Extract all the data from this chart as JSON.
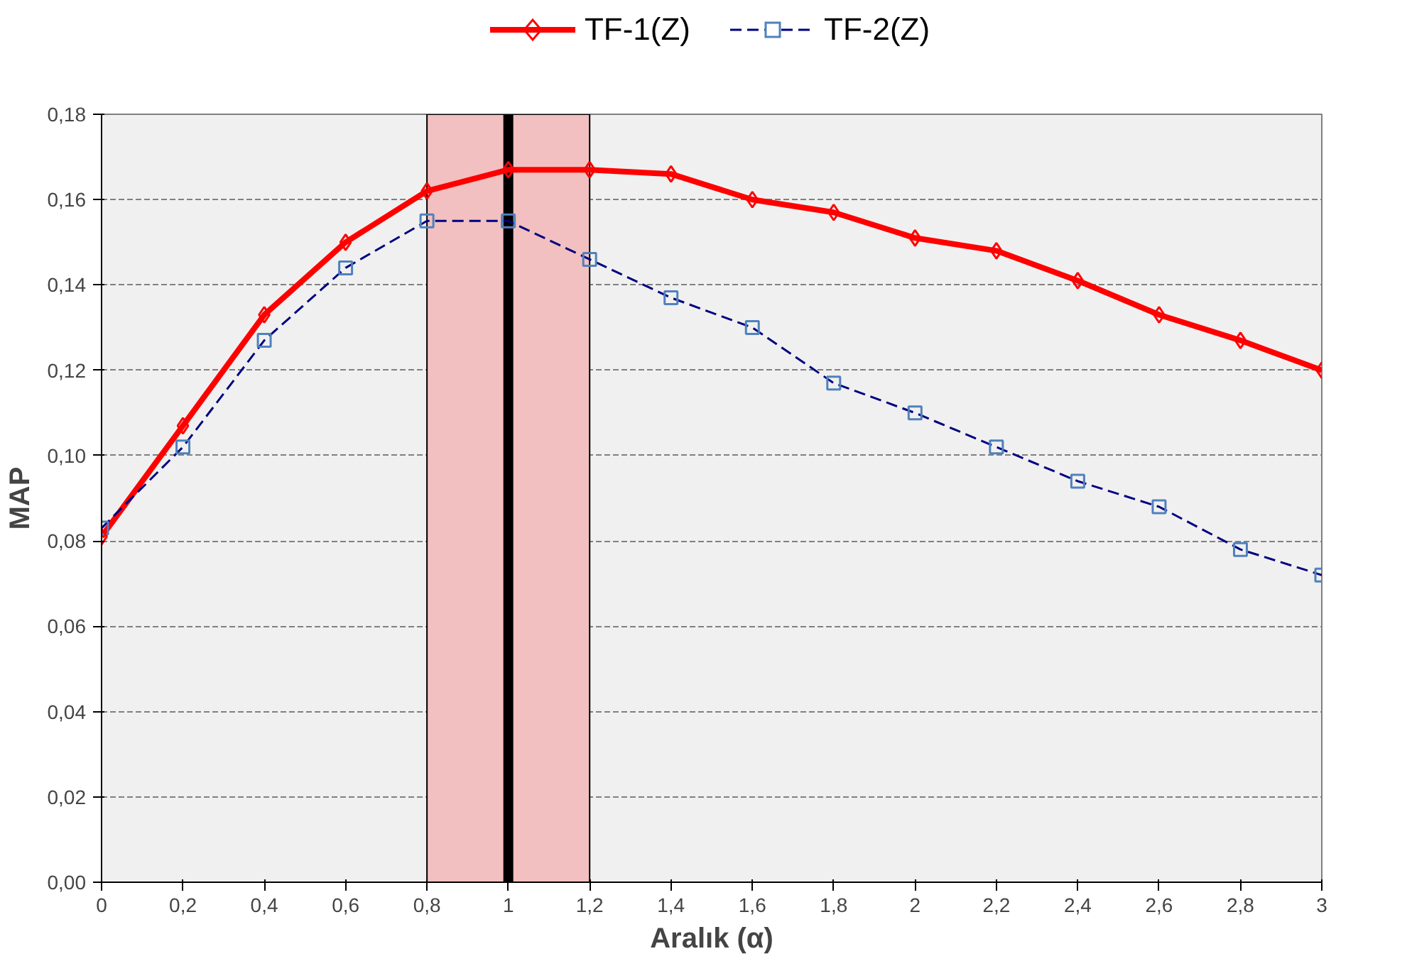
{
  "chart_data": {
    "type": "line",
    "xlabel": "Aralık (α)",
    "ylabel": "MAP",
    "x": [
      0,
      0.2,
      0.4,
      0.6,
      0.8,
      1,
      1.2,
      1.4,
      1.6,
      1.8,
      2,
      2.2,
      2.4,
      2.6,
      2.8,
      3
    ],
    "series": [
      {
        "name": "TF-1(Z)",
        "color": "#ff0000",
        "marker": "diamond",
        "line_style": "solid",
        "values": [
          0.081,
          0.107,
          0.133,
          0.15,
          0.162,
          0.167,
          0.167,
          0.166,
          0.16,
          0.157,
          0.151,
          0.148,
          0.141,
          0.133,
          0.127,
          0.12
        ]
      },
      {
        "name": "TF-2(Z)",
        "color": "#000080",
        "marker": "square",
        "line_style": "dashed",
        "values": [
          0.083,
          0.102,
          0.127,
          0.144,
          0.155,
          0.155,
          0.146,
          0.137,
          0.13,
          0.117,
          0.11,
          0.102,
          0.094,
          0.088,
          0.078,
          0.072
        ]
      }
    ],
    "xlim": [
      0,
      3
    ],
    "xticks": [
      0,
      {
        "value": 0.2,
        "label": "0,2"
      },
      {
        "value": 0.4,
        "label": "0,4"
      },
      {
        "value": 0.6,
        "label": "0,6"
      },
      {
        "value": 0.8,
        "label": "0,8"
      },
      1,
      {
        "value": 1.2,
        "label": "1,2"
      },
      {
        "value": 1.4,
        "label": "1,4"
      },
      {
        "value": 1.6,
        "label": "1,6"
      },
      {
        "value": 1.8,
        "label": "1,8"
      },
      2,
      {
        "value": 2.2,
        "label": "2,2"
      },
      {
        "value": 2.4,
        "label": "2,4"
      },
      {
        "value": 2.6,
        "label": "2,6"
      },
      {
        "value": 2.8,
        "label": "2,8"
      },
      3
    ],
    "ylim": [
      0,
      0.18
    ],
    "yticks": [
      {
        "value": 0,
        "label": "0,00"
      },
      {
        "value": 0.02,
        "label": "0,02"
      },
      {
        "value": 0.04,
        "label": "0,04"
      },
      {
        "value": 0.06,
        "label": "0,06"
      },
      {
        "value": 0.08,
        "label": "0,08"
      },
      {
        "value": 0.1,
        "label": "0,10"
      },
      {
        "value": 0.12,
        "label": "0,12"
      },
      {
        "value": 0.14,
        "label": "0,14"
      },
      {
        "value": 0.16,
        "label": "0,16"
      },
      {
        "value": 0.18,
        "label": "0,18"
      }
    ],
    "bands": [
      {
        "axis": "x",
        "from": 0.8,
        "to": 1.2,
        "color": "#f2c0c0"
      }
    ],
    "ref_lines": [
      {
        "axis": "x",
        "value": 1,
        "color": "#000000"
      }
    ],
    "grid": "y",
    "legend": "top"
  }
}
